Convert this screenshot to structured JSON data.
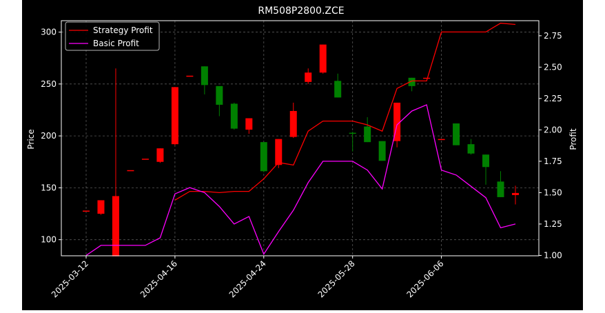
{
  "chart_data": {
    "type": "candlestick+line",
    "title": "RM508P2800.ZCE",
    "ylabel_left": "Price",
    "ylabel_right": "Profit",
    "ylim_left": [
      84.5,
      311
    ],
    "ylim_right": [
      0.997,
      2.87
    ],
    "yticks_left": [
      100,
      150,
      200,
      250,
      300
    ],
    "yticks_right": [
      1.0,
      1.25,
      1.5,
      1.75,
      2.0,
      2.25,
      2.5,
      2.75
    ],
    "xticks": [
      {
        "label": "2025-03-12",
        "index": 0
      },
      {
        "label": "2025-04-16",
        "index": 6
      },
      {
        "label": "2025-04-24",
        "index": 12
      },
      {
        "label": "2025-05-28",
        "index": 18
      },
      {
        "label": "2025-06-06",
        "index": 24
      }
    ],
    "grid": true,
    "legend": {
      "position": "top-left",
      "entries": [
        "Strategy Profit",
        "Basic Profit"
      ]
    },
    "colors": {
      "up": "#ff0000",
      "down": "#008000",
      "strategy": "#ff0000",
      "basic": "#ff00ff",
      "background": "#000000",
      "text": "#ffffff"
    },
    "candles": [
      {
        "o": 128,
        "h": 128,
        "l": 128,
        "c": 128
      },
      {
        "o": 125,
        "h": 138,
        "l": 124,
        "c": 138
      },
      {
        "o": 84,
        "h": 265,
        "l": 84,
        "c": 142
      },
      {
        "o": 167,
        "h": 167,
        "l": 167,
        "c": 167
      },
      {
        "o": 178,
        "h": 178,
        "l": 178,
        "c": 178
      },
      {
        "o": 175,
        "h": 188,
        "l": 174,
        "c": 188
      },
      {
        "o": 192,
        "h": 247,
        "l": 191,
        "c": 247
      },
      {
        "o": 258,
        "h": 258,
        "l": 258,
        "c": 258
      },
      {
        "o": 267,
        "h": 267,
        "l": 240,
        "c": 249
      },
      {
        "o": 248,
        "h": 248,
        "l": 219,
        "c": 230
      },
      {
        "o": 231,
        "h": 232,
        "l": 206,
        "c": 207
      },
      {
        "o": 206,
        "h": 217,
        "l": 202,
        "c": 217
      },
      {
        "o": 194,
        "h": 194,
        "l": 165,
        "c": 166
      },
      {
        "o": 172,
        "h": 197,
        "l": 169,
        "c": 197
      },
      {
        "o": 199,
        "h": 232,
        "l": 198,
        "c": 224
      },
      {
        "o": 252,
        "h": 265,
        "l": 250,
        "c": 261
      },
      {
        "o": 261,
        "h": 288,
        "l": 260,
        "c": 288
      },
      {
        "o": 253,
        "h": 260,
        "l": 237,
        "c": 237
      },
      {
        "o": 203,
        "h": 204,
        "l": 185,
        "c": 202
      },
      {
        "o": 209,
        "h": 218,
        "l": 194,
        "c": 194
      },
      {
        "o": 195,
        "h": 195,
        "l": 176,
        "c": 176
      },
      {
        "o": 195,
        "h": 232,
        "l": 189,
        "c": 232
      },
      {
        "o": 256,
        "h": 256,
        "l": 243,
        "c": 248
      },
      {
        "o": 256,
        "h": 256,
        "l": 256,
        "c": 256
      },
      {
        "o": 197,
        "h": 197,
        "l": 197,
        "c": 197
      },
      {
        "o": 212,
        "h": 212,
        "l": 191,
        "c": 191
      },
      {
        "o": 192,
        "h": 197,
        "l": 182,
        "c": 183
      },
      {
        "o": 182,
        "h": 182,
        "l": 153,
        "c": 170
      },
      {
        "o": 156,
        "h": 166,
        "l": 141,
        "c": 141
      },
      {
        "o": 143,
        "h": 152,
        "l": 134,
        "c": 145
      }
    ],
    "series": [
      {
        "name": "Strategy Profit",
        "axis": "right",
        "values": [
          null,
          null,
          null,
          null,
          null,
          null,
          1.44,
          1.51,
          1.51,
          1.5,
          1.51,
          1.51,
          1.61,
          1.74,
          1.72,
          1.99,
          2.07,
          2.07,
          2.07,
          2.04,
          1.99,
          2.33,
          2.39,
          2.39,
          2.78,
          2.78,
          2.78,
          2.78,
          2.85,
          2.84
        ]
      },
      {
        "name": "Basic Profit",
        "axis": "right",
        "values": [
          1.0,
          1.08,
          1.08,
          1.08,
          1.08,
          1.14,
          1.49,
          1.54,
          1.5,
          1.39,
          1.25,
          1.31,
          1.01,
          1.19,
          1.36,
          1.58,
          1.75,
          1.75,
          1.75,
          1.68,
          1.53,
          2.04,
          2.15,
          2.2,
          1.68,
          1.64,
          1.55,
          1.46,
          1.22,
          1.25
        ]
      }
    ]
  }
}
